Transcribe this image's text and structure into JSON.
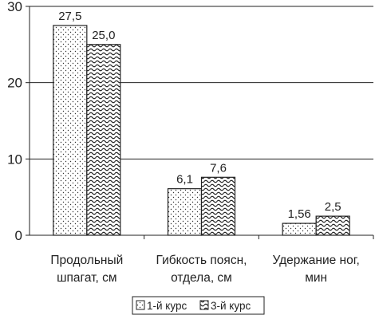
{
  "chart_data": {
    "type": "bar",
    "categories": [
      [
        "Продольный",
        "шпагат, см"
      ],
      [
        "Гибкость поясн,",
        "отдела, см"
      ],
      [
        "Удержание ног,",
        "мин"
      ]
    ],
    "series": [
      {
        "name": "1-й курс",
        "pattern": "dots",
        "values": [
          27.5,
          6.1,
          1.56
        ],
        "labels": [
          "27,5",
          "6,1",
          "1,56"
        ]
      },
      {
        "name": "3-й курс",
        "pattern": "waves",
        "values": [
          25.0,
          7.6,
          2.5
        ],
        "labels": [
          "25,0",
          "7,6",
          "2,5"
        ]
      }
    ],
    "y_ticks": [
      0,
      10,
      20,
      30
    ],
    "y_tick_labels": [
      "0",
      "10",
      "20",
      "30"
    ],
    "ylim": [
      0,
      30
    ],
    "grid": true,
    "legend_position": "bottom-center",
    "colors": {
      "stroke": "#222222",
      "fill": "#ffffff",
      "grid": "#222222"
    }
  }
}
